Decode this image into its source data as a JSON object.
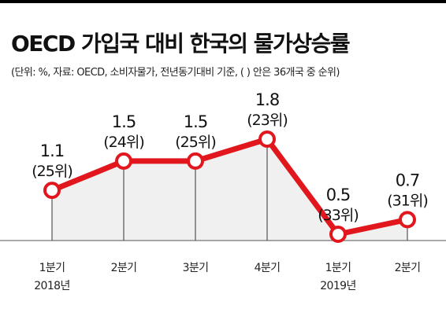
{
  "colors": {
    "line": "#e2171e",
    "area": "#f0f0f0",
    "guide": "#333333",
    "text": "#111111"
  },
  "chart_data": {
    "type": "line",
    "title": "OECD 가입국 대비 한국의 물가상승률",
    "subtitle": "(단위: %, 자료: OECD, 소비자물가, 전년동기대비 기준, ( ) 안은 36개국 중 순위)",
    "categories": [
      "1분기",
      "2분기",
      "3분기",
      "4분기",
      "1분기",
      "2분기"
    ],
    "year_labels": [
      "2018년",
      "",
      "",
      "",
      "2019년",
      ""
    ],
    "values": [
      1.1,
      1.5,
      1.5,
      1.8,
      0.5,
      0.7
    ],
    "value_labels": [
      "1.1",
      "1.5",
      "1.5",
      "1.8",
      "0.5",
      "0.7"
    ],
    "rank_labels": [
      "(25위)",
      "(24위)",
      "(25위)",
      "(23위)",
      "(33위)",
      "(31위)"
    ],
    "ylim": [
      0.5,
      1.8
    ],
    "grid": false,
    "legend": "none"
  }
}
